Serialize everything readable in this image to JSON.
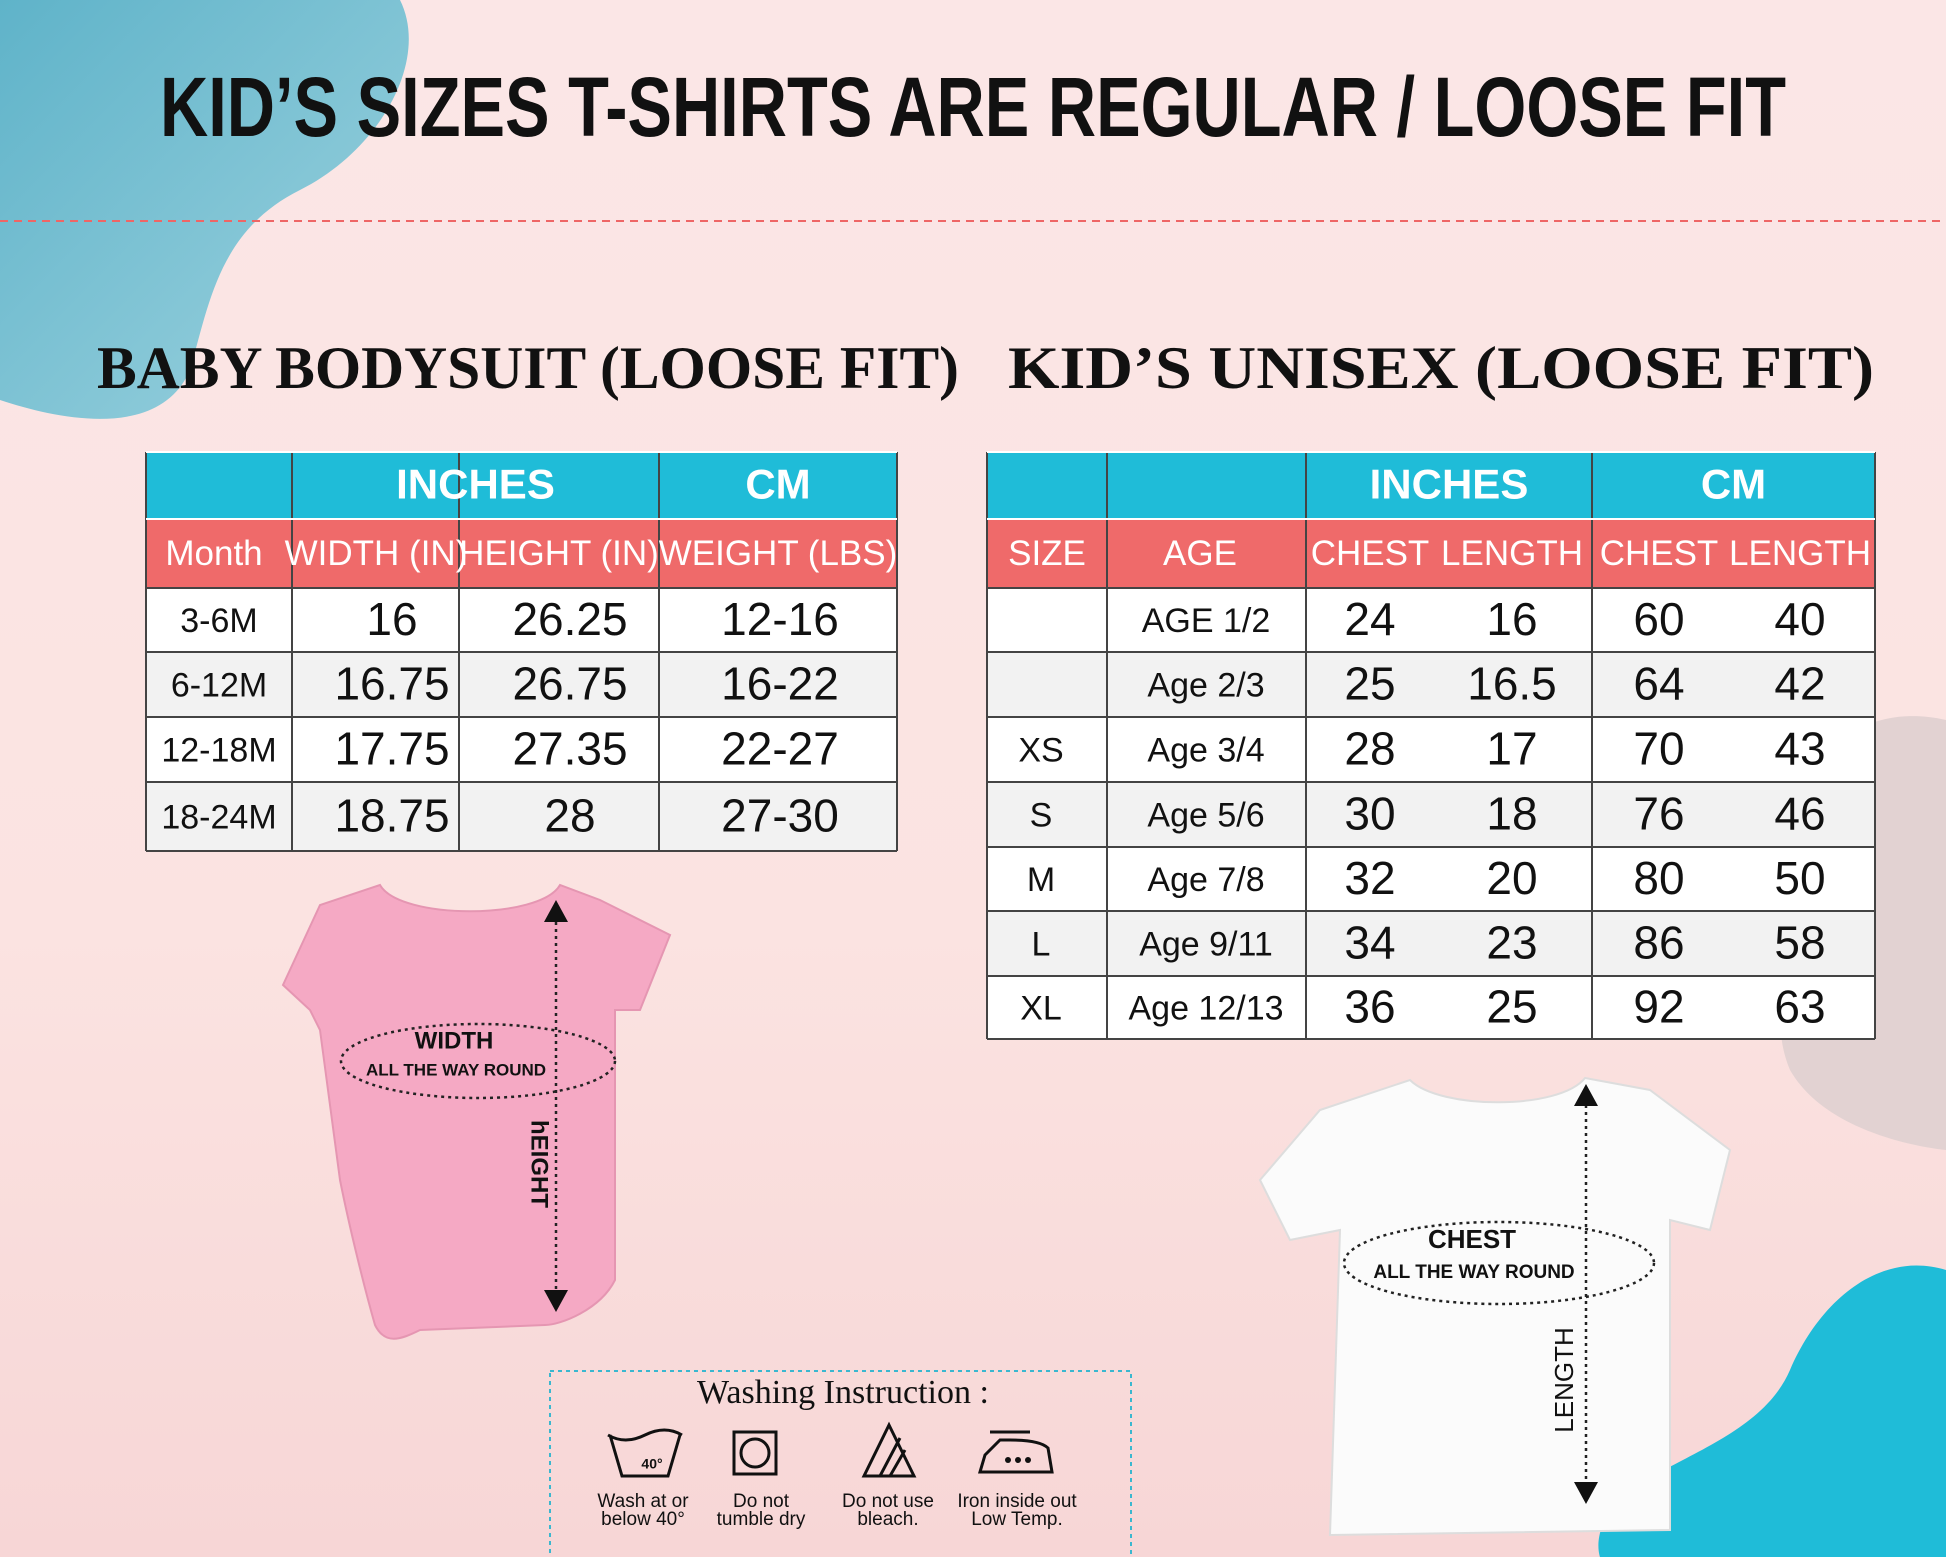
{
  "header": {
    "title": "KID’S SIZES T-SHIRTS ARE REGULAR / LOOSE FIT"
  },
  "baby": {
    "heading": "BABY BODYSUIT (LOOSE FIT)",
    "table": {
      "groups": [
        "INCHES",
        "CM"
      ],
      "columns": [
        "Month",
        "WIDTH (IN)",
        "HEIGHT (IN)",
        "WEIGHT (LBS)"
      ],
      "rows": [
        [
          "3-6M",
          "16",
          "26.25",
          "12-16"
        ],
        [
          "6-12M",
          "16.75",
          "26.75",
          "16-22"
        ],
        [
          "12-18M",
          "17.75",
          "27.35",
          "22-27"
        ],
        [
          "18-24M",
          "18.75",
          "28",
          "27-30"
        ]
      ]
    },
    "illustration": {
      "width": "WIDTH",
      "round": "ALL THE WAY ROUND",
      "height": "hEIGHT"
    }
  },
  "kids": {
    "heading": "KID’S UNISEX (LOOSE FIT)",
    "table": {
      "groups": [
        "INCHES",
        "CM"
      ],
      "columns": [
        "SIZE",
        "AGE",
        "CHEST",
        "LENGTH",
        "CHEST",
        "LENGTH"
      ],
      "rows": [
        [
          null,
          "AGE 1/2",
          "24",
          "16",
          "60",
          "40"
        ],
        [
          null,
          "Age 2/3",
          "25",
          "16.5",
          "64",
          "42"
        ],
        [
          "XS",
          "Age 3/4",
          "28",
          "17",
          "70",
          "43"
        ],
        [
          "S",
          "Age 5/6",
          "30",
          "18",
          "76",
          "46"
        ],
        [
          "M",
          "Age 7/8",
          "32",
          "20",
          "80",
          "50"
        ],
        [
          "L",
          "Age 9/11",
          "34",
          "23",
          "86",
          "58"
        ],
        [
          "XL",
          "Age 12/13",
          "36",
          "25",
          "92",
          "63"
        ]
      ]
    },
    "illustration": {
      "chest": "CHEST",
      "round": "ALL THE WAY ROUND",
      "length": "LENGTH"
    }
  },
  "washing": {
    "title": "Washing Instruction :",
    "temp": "40°",
    "items": [
      [
        "Wash at or",
        "below 40°"
      ],
      [
        "Do  not",
        "tumble dry"
      ],
      [
        "Do not use",
        "bleach."
      ],
      [
        "Iron inside out",
        "Low Temp."
      ]
    ]
  }
}
